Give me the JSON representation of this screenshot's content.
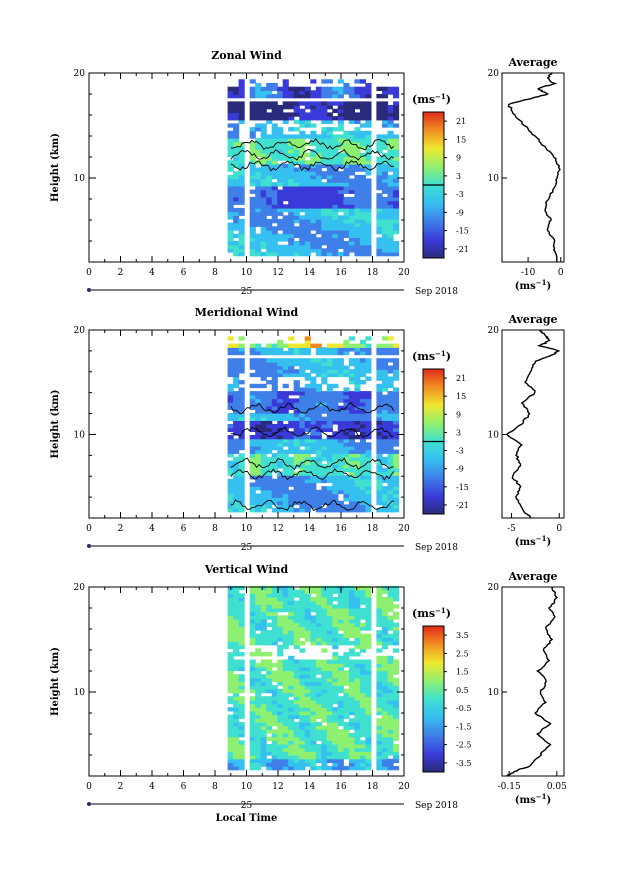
{
  "chart_data": [
    {
      "type": "heatmap",
      "title": "Zonal Wind",
      "ylabel": "Height (km)",
      "yticks": [
        "20",
        "10"
      ],
      "ylim": [
        2,
        20
      ],
      "xticks": [
        "0",
        "2",
        "4",
        "6",
        "8",
        "10",
        "12",
        "14",
        "16",
        "18",
        "20"
      ],
      "xlim": [
        0,
        20
      ],
      "date_day": "25",
      "date_label": "Sep 2018",
      "data_start_hour": 8.8,
      "data_end_hour": 19.5,
      "gaps_hours": [
        9.6,
        17.6
      ],
      "colorbar": {
        "unit": "(ms",
        "unit_exp": "−1",
        "unit_close": ")",
        "ticks": [
          "21",
          "15",
          "9",
          "3",
          "-3",
          "-9",
          "-15",
          "-21"
        ],
        "range": [
          -24,
          24
        ],
        "contour_level": 0
      },
      "profile": {
        "title": "Average",
        "xticks": [
          "-10",
          "0"
        ],
        "xlim": [
          -18,
          1
        ],
        "xunit": "(ms",
        "xunit_exp": "−1",
        "xunit_close": ")",
        "height_km": [
          2,
          3,
          4,
          5,
          6,
          7,
          8,
          9,
          10,
          11,
          12,
          13,
          14,
          15,
          16,
          17,
          17.5,
          18,
          18.5,
          19,
          19.5,
          20
        ],
        "values": [
          -1,
          -2,
          -2,
          -4,
          -3,
          -5,
          -4,
          -2,
          -1,
          -0.5,
          -2,
          -5,
          -8,
          -11,
          -14,
          -16,
          -10,
          -4,
          -7,
          -2,
          -4,
          -3
        ]
      }
    },
    {
      "type": "heatmap",
      "title": "Meridional Wind",
      "ylabel": "Height (km)",
      "yticks": [
        "20",
        "10"
      ],
      "ylim": [
        2,
        20
      ],
      "xticks": [
        "0",
        "2",
        "4",
        "6",
        "8",
        "10",
        "12",
        "14",
        "16",
        "18",
        "20"
      ],
      "xlim": [
        0,
        20
      ],
      "date_day": "25",
      "date_label": "Sep 2018",
      "data_start_hour": 8.8,
      "data_end_hour": 19.5,
      "gaps_hours": [
        9.6,
        17.6
      ],
      "colorbar": {
        "unit": "(ms",
        "unit_exp": "−1",
        "unit_close": ")",
        "ticks": [
          "21",
          "15",
          "9",
          "3",
          "-3",
          "-9",
          "-15",
          "-21"
        ],
        "range": [
          -24,
          24
        ],
        "contour_level": 0
      },
      "profile": {
        "title": "Average",
        "xticks": [
          "-5",
          "0"
        ],
        "xlim": [
          -6,
          0.5
        ],
        "xunit": "(ms",
        "xunit_exp": "−1",
        "xunit_close": ")",
        "height_km": [
          2,
          3,
          4,
          5,
          6,
          7,
          8,
          9,
          10,
          11,
          12,
          13,
          14,
          15,
          16,
          17,
          17.5,
          18,
          18.5,
          19,
          19.5,
          20
        ],
        "values": [
          -3,
          -4,
          -4.5,
          -4,
          -5,
          -4,
          -4.5,
          -4,
          -5.5,
          -4,
          -3,
          -4,
          -2.5,
          -3.5,
          -3,
          -2.5,
          -1,
          0,
          -2,
          -1,
          -1.5,
          -2
        ]
      }
    },
    {
      "type": "heatmap",
      "title": "Vertical Wind",
      "ylabel": "Height (km)",
      "yticks": [
        "20",
        "10"
      ],
      "ylim": [
        2,
        20
      ],
      "xticks": [
        "0",
        "2",
        "4",
        "6",
        "8",
        "10",
        "12",
        "14",
        "16",
        "18",
        "20"
      ],
      "xlim": [
        0,
        20
      ],
      "xlabel": "Local Time",
      "date_day": "25",
      "date_label": "Sep 2018",
      "data_start_hour": 8.8,
      "data_end_hour": 19.5,
      "gaps_hours": [
        9.6,
        17.6
      ],
      "colorbar": {
        "unit": "(ms",
        "unit_exp": "−1",
        "unit_close": ")",
        "ticks": [
          "3.5",
          "2.5",
          "1.5",
          "0.5",
          "-0.5",
          "-1.5",
          "-2.5",
          "-3.5"
        ],
        "range": [
          -4,
          4
        ]
      },
      "profile": {
        "title": "Average",
        "xticks": [
          "-0.15",
          "0.05"
        ],
        "xlim": [
          -0.18,
          0.08
        ],
        "xunit": "(ms",
        "xunit_exp": "−1",
        "xunit_close": ")",
        "height_km": [
          2,
          2.5,
          3,
          4,
          5,
          6,
          7,
          8,
          9,
          10,
          11,
          12,
          13,
          14,
          15,
          16,
          17,
          18,
          19,
          20
        ],
        "values": [
          -0.16,
          -0.12,
          -0.06,
          -0.02,
          0.02,
          -0.03,
          0.02,
          -0.04,
          0.0,
          -0.02,
          0.01,
          -0.03,
          0.02,
          -0.01,
          0.03,
          0.0,
          0.04,
          0.02,
          0.05,
          0.03
        ]
      }
    }
  ]
}
